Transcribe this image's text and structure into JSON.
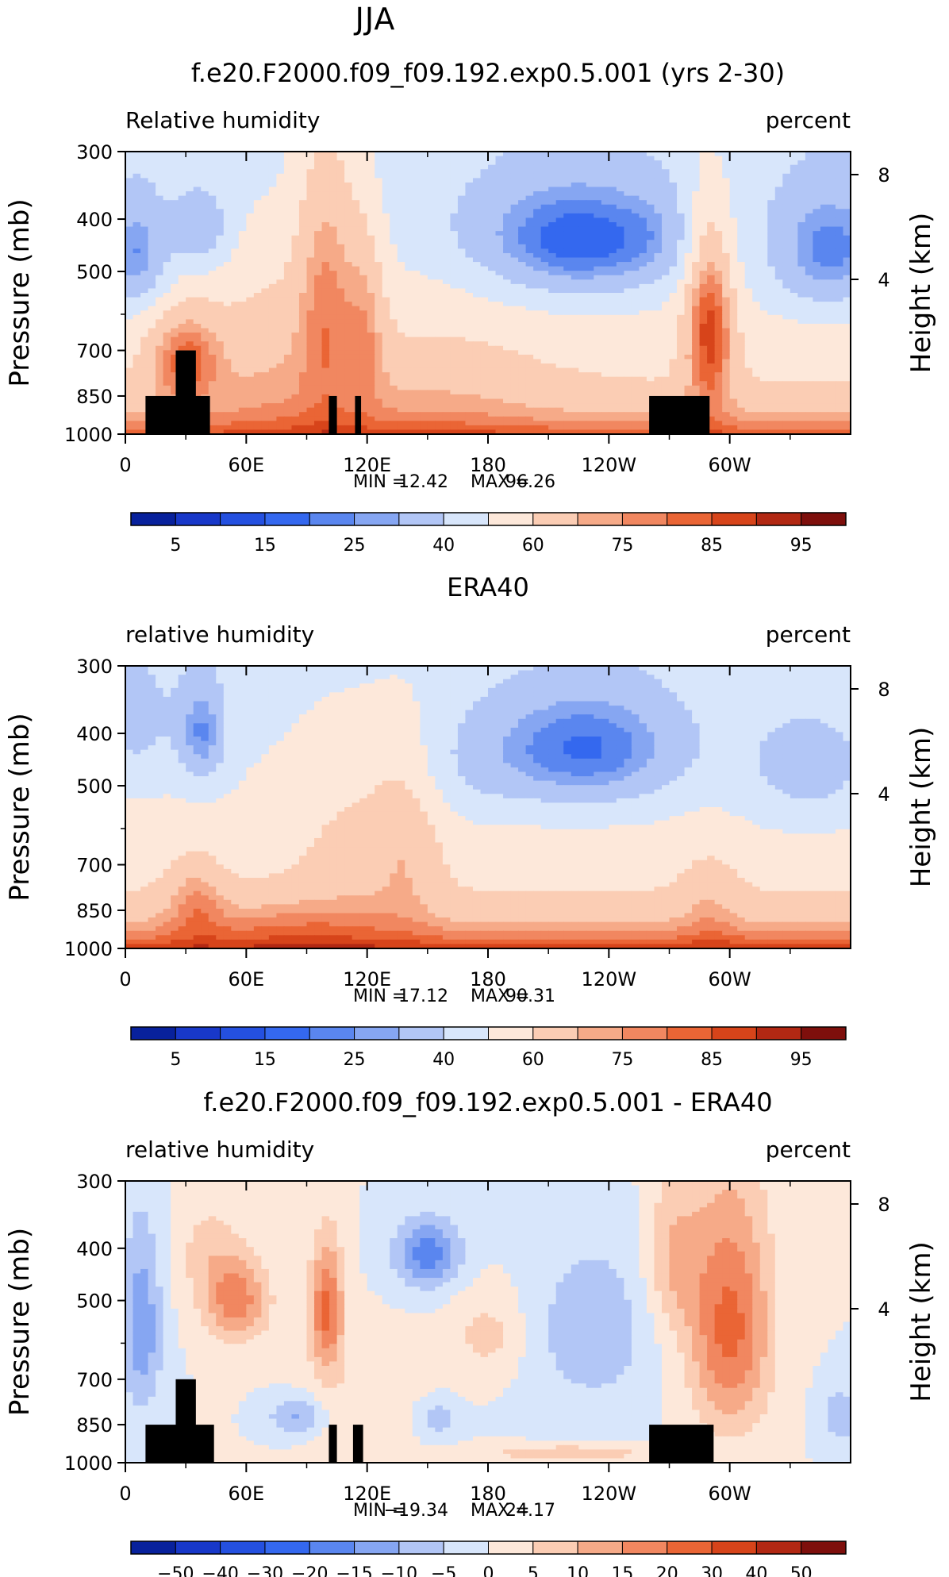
{
  "figure_title": "JJA",
  "chart_data": [
    {
      "type": "heatmap",
      "title": "f.e20.F2000.f09_f09.192.exp0.5.001 (yrs 2-30)",
      "variable_label": "Relative humidity",
      "units_label": "percent",
      "ylabel": "Pressure (mb)",
      "ylabel_right": "Height (km)",
      "x_ticks": [
        "0",
        "60E",
        "120E",
        "180",
        "120W",
        "60W"
      ],
      "y_ticks": [
        "300",
        "400",
        "500",
        "700",
        "850",
        "1000"
      ],
      "y2_ticks": [
        "8",
        "4"
      ],
      "xlim": [
        0,
        360
      ],
      "ylim": [
        1000,
        300
      ],
      "min_label": "MIN =",
      "min_value": "12.42",
      "max_label": "MAX =",
      "max_value": "96.26",
      "colorbar_labels": [
        "5",
        "15",
        "25",
        "40",
        "60",
        "75",
        "85",
        "95"
      ]
    },
    {
      "type": "heatmap",
      "title": "ERA40",
      "variable_label": "relative humidity",
      "units_label": "percent",
      "ylabel": "Pressure (mb)",
      "ylabel_right": "Height (km)",
      "x_ticks": [
        "0",
        "60E",
        "120E",
        "180",
        "120W",
        "60W"
      ],
      "y_ticks": [
        "300",
        "400",
        "500",
        "700",
        "850",
        "1000"
      ],
      "y2_ticks": [
        "8",
        "4"
      ],
      "xlim": [
        0,
        360
      ],
      "ylim": [
        1000,
        300
      ],
      "min_label": "MIN =",
      "min_value": "17.12",
      "max_label": "MAX =",
      "max_value": "90.31",
      "colorbar_labels": [
        "5",
        "15",
        "25",
        "40",
        "60",
        "75",
        "85",
        "95"
      ]
    },
    {
      "type": "heatmap",
      "title": "f.e20.F2000.f09_f09.192.exp0.5.001 - ERA40",
      "variable_label": "relative humidity",
      "units_label": "percent",
      "ylabel": "Pressure (mb)",
      "ylabel_right": "Height (km)",
      "x_ticks": [
        "0",
        "60E",
        "120E",
        "180",
        "120W",
        "60W"
      ],
      "y_ticks": [
        "300",
        "400",
        "500",
        "700",
        "850",
        "1000"
      ],
      "y2_ticks": [
        "8",
        "4"
      ],
      "xlim": [
        0,
        360
      ],
      "ylim": [
        1000,
        300
      ],
      "min_label": "MIN =",
      "min_value": "−19.34",
      "max_label": "MAX =",
      "max_value": "24.17",
      "colorbar_labels": [
        "−50",
        "−40",
        "−30",
        "−20",
        "−15",
        "−10",
        "−5",
        "0",
        "5",
        "10",
        "15",
        "20",
        "30",
        "40",
        "50"
      ]
    }
  ],
  "colors": {
    "scale16": [
      "#08219c",
      "#1838c9",
      "#2450e0",
      "#3468ef",
      "#5a86ef",
      "#86a6f2",
      "#b2c6f6",
      "#d8e6fb",
      "#fde8da",
      "#fbcdb4",
      "#f6aa88",
      "#f18760",
      "#ea6535",
      "#d7441a",
      "#b22813",
      "#7e0f0c"
    ],
    "land": "#000000",
    "frame": "#000000"
  }
}
